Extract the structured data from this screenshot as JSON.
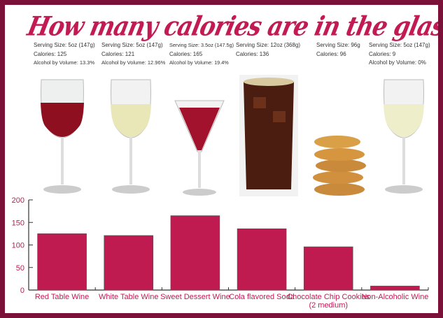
{
  "title": "How many calories are in the glass?",
  "items": [
    {
      "serving": "Serving Size: 5oz (147g)",
      "calories": "Calories: 125",
      "abv": "Alcohol by Volume: 13.3%",
      "image": "red-wine-glass"
    },
    {
      "serving": "Serving Size: 5oz (147g)",
      "calories": "Calories: 121",
      "abv": "Alcohol by Volume: 12.96%",
      "image": "white-wine-glass"
    },
    {
      "serving": "Serving Size: 3.5oz (147.5g)",
      "calories": "Calories: 165",
      "abv": "Alcohol by Volume: 19.4%",
      "image": "dessert-wine-glass"
    },
    {
      "serving": "Serving Size: 12oz (368g)",
      "calories": "Calories: 136",
      "abv": "",
      "image": "cola-glass"
    },
    {
      "serving": "Serving Size: 96g",
      "calories": "Calories: 96",
      "abv": "",
      "image": "cookie-stack"
    },
    {
      "serving": "Serving Size: 5oz (147g)",
      "calories": "Calories: 9",
      "abv": "Alcohol by Volume: 0%",
      "image": "non-alcoholic-wine-glass"
    }
  ],
  "colors": {
    "accent": "#c21a52",
    "frame": "#7b1039",
    "bar": "#c01b50"
  },
  "chart_data": {
    "type": "bar",
    "categories": [
      "Red Table Wine",
      "White Table Wine",
      "Sweet Dessert Wine",
      "Cola flavored Soda",
      "Chocolate Chip Cookies (2 medium)",
      "Non-Alcoholic Wine"
    ],
    "category_lines": [
      [
        "Red Table Wine"
      ],
      [
        "White Table Wine"
      ],
      [
        "Sweet Dessert Wine"
      ],
      [
        "Cola flavored Soda"
      ],
      [
        "Chocolate Chip Cookies",
        "(2 medium)"
      ],
      [
        "Non-Alcoholic Wine"
      ]
    ],
    "values": [
      125,
      121,
      165,
      136,
      96,
      9
    ],
    "yticks": [
      "0",
      "50",
      "100",
      "150",
      "200"
    ],
    "ylim": [
      0,
      200
    ],
    "xlabel": "",
    "ylabel": "",
    "title": "",
    "grid": false,
    "legend": "none"
  }
}
